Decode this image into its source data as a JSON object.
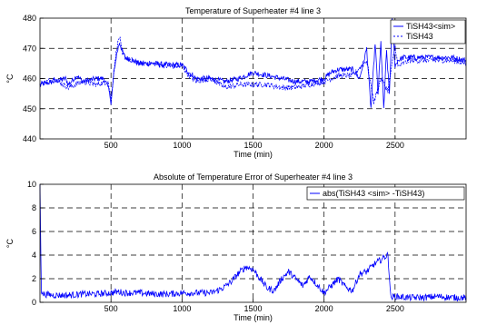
{
  "chart_data": [
    {
      "type": "line",
      "title": "Temperature of Superheater #4 line 3",
      "xlabel": "Time (min)",
      "ylabel": "°C",
      "xlim": [
        0,
        3000
      ],
      "ylim": [
        440,
        480
      ],
      "xticks": [
        500,
        1000,
        1500,
        2000,
        2500
      ],
      "xtick_labels": [
        "500",
        "1000",
        "1500",
        "2000",
        "2500"
      ],
      "yticks": [
        440,
        450,
        460,
        470,
        480
      ],
      "ytick_labels": [
        "440",
        "450",
        "460",
        "470",
        "480"
      ],
      "grid": true,
      "grid_style": "dashed",
      "legend_position": "top-right",
      "series": [
        {
          "name": "TiSH43<sim>",
          "color": "#0000ff",
          "style": "solid",
          "x": [
            0,
            100,
            180,
            200,
            260,
            300,
            400,
            450,
            490,
            500,
            520,
            540,
            560,
            580,
            600,
            650,
            700,
            800,
            900,
            1000,
            1050,
            1100,
            1200,
            1300,
            1400,
            1500,
            1600,
            1700,
            1800,
            1900,
            2000,
            2050,
            2100,
            2150,
            2200,
            2250,
            2300,
            2330,
            2360,
            2380,
            2400,
            2420,
            2440,
            2460,
            2480,
            2500,
            2520,
            2560,
            2600,
            2700,
            2800,
            2900,
            3000
          ],
          "y": [
            458,
            459,
            460,
            458,
            461,
            459,
            460,
            460,
            456,
            451,
            462,
            468,
            472,
            469,
            467,
            466,
            465,
            465,
            464.5,
            464.5,
            462,
            460,
            460,
            459,
            460,
            462,
            461,
            460,
            459,
            459,
            460,
            462,
            463,
            463,
            463,
            460,
            470,
            450,
            472,
            455,
            472,
            450,
            469,
            455,
            480,
            464,
            466,
            467,
            467,
            467,
            467,
            467,
            466
          ]
        },
        {
          "name": "TiSH43",
          "color": "#0000ff",
          "style": "dashed",
          "x": [
            0,
            100,
            200,
            300,
            400,
            480,
            500,
            520,
            540,
            560,
            580,
            600,
            650,
            700,
            800,
            900,
            1000,
            1050,
            1100,
            1200,
            1300,
            1400,
            1500,
            1600,
            1700,
            1800,
            1900,
            2000,
            2100,
            2200,
            2300,
            2350,
            2400,
            2450,
            2500,
            2520,
            2560,
            2600,
            2700,
            2800,
            2900,
            3000
          ],
          "y": [
            458,
            460,
            457,
            459,
            458,
            459,
            453,
            462,
            470,
            474,
            468,
            467,
            466,
            465,
            465,
            464,
            464,
            461,
            459,
            460,
            457,
            458,
            458,
            458,
            457,
            457,
            458,
            459,
            461,
            461,
            466,
            452,
            460,
            456,
            471,
            464,
            465,
            466,
            466,
            466,
            466,
            465
          ]
        }
      ]
    },
    {
      "type": "line",
      "title": "Absolute of Temperature Error of Superheater #4 line 3",
      "xlabel": "Time (min)",
      "ylabel": "°C",
      "xlim": [
        0,
        3000
      ],
      "ylim": [
        0,
        10
      ],
      "xticks": [
        500,
        1000,
        1500,
        2000,
        2500
      ],
      "xtick_labels": [
        "500",
        "1000",
        "1500",
        "2000",
        "2500"
      ],
      "yticks": [
        0,
        2,
        4,
        6,
        8,
        10
      ],
      "ytick_labels": [
        "0",
        "2",
        "4",
        "6",
        "8",
        "10"
      ],
      "grid": true,
      "grid_style": "dashed",
      "legend_position": "top-right",
      "series": [
        {
          "name": "abs(TiSH43 <sim> -TiSH43)",
          "color": "#0000ff",
          "style": "solid",
          "x": [
            0,
            10,
            20,
            100,
            200,
            300,
            400,
            500,
            550,
            600,
            700,
            800,
            900,
            1000,
            1100,
            1200,
            1250,
            1300,
            1350,
            1400,
            1450,
            1500,
            1550,
            1600,
            1650,
            1700,
            1750,
            1800,
            1850,
            1900,
            1950,
            2000,
            2050,
            2100,
            2150,
            2200,
            2250,
            2300,
            2350,
            2400,
            2420,
            2450,
            2470,
            2500,
            2600,
            2700,
            2800,
            2900,
            3000
          ],
          "y": [
            10,
            1,
            0.7,
            0.6,
            0.6,
            0.7,
            0.7,
            0.8,
            0.9,
            0.8,
            0.8,
            0.7,
            0.7,
            0.8,
            0.8,
            0.8,
            1.0,
            1.3,
            1.8,
            2.5,
            3.0,
            2.8,
            2.0,
            1.2,
            1.0,
            2.0,
            2.6,
            2.0,
            1.4,
            2.2,
            1.5,
            0.8,
            1.4,
            2.0,
            1.3,
            1.0,
            2.4,
            2.6,
            3.2,
            3.6,
            3.8,
            4.0,
            0.4,
            0.5,
            0.4,
            0.4,
            0.5,
            0.4,
            0.4
          ]
        }
      ]
    }
  ]
}
